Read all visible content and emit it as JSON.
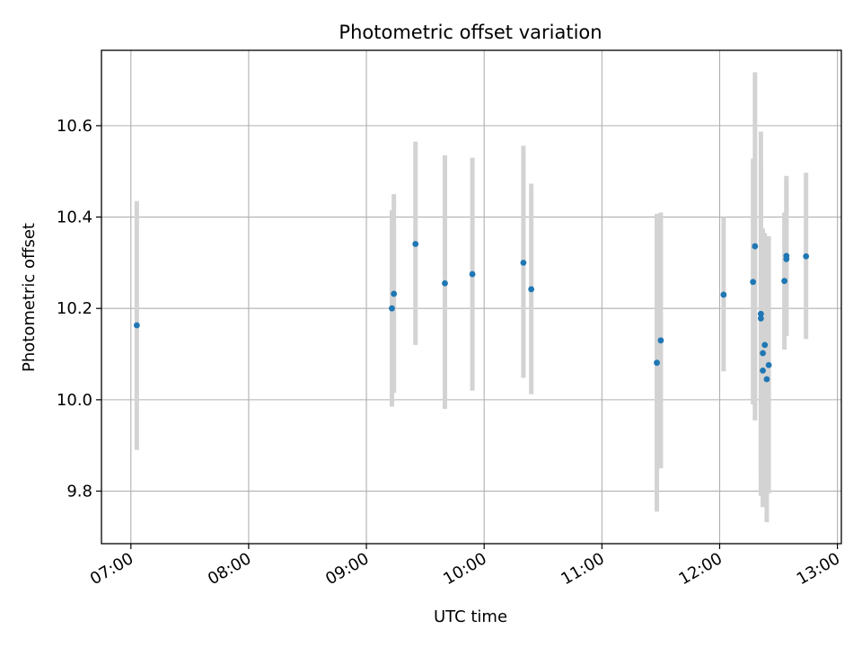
{
  "chart_data": {
    "type": "scatter",
    "title": "Photometric offset variation",
    "xlabel": "UTC time",
    "ylabel": "Photometric offset",
    "x_axis_kind": "time",
    "xlim": [
      "06:45",
      "13:02"
    ],
    "ylim": [
      9.685,
      10.765
    ],
    "x_ticks": [
      "07:00",
      "08:00",
      "09:00",
      "10:00",
      "11:00",
      "12:00",
      "13:00"
    ],
    "y_ticks": [
      9.8,
      10.0,
      10.2,
      10.4,
      10.6
    ],
    "y_tick_labels": [
      "9.8",
      "10.0",
      "10.2",
      "10.4",
      "10.6"
    ],
    "grid": true,
    "marker_color": "#1f77b4",
    "errorbar_color": "#d3d3d3",
    "points": [
      {
        "time": "07:03",
        "y": 10.163,
        "lo": 9.89,
        "hi": 10.435
      },
      {
        "time": "09:13",
        "y": 10.2,
        "lo": 9.985,
        "hi": 10.415
      },
      {
        "time": "09:14",
        "y": 10.232,
        "lo": 10.015,
        "hi": 10.45
      },
      {
        "time": "09:25",
        "y": 10.341,
        "lo": 10.12,
        "hi": 10.565
      },
      {
        "time": "09:40",
        "y": 10.255,
        "lo": 9.98,
        "hi": 10.535
      },
      {
        "time": "09:54",
        "y": 10.275,
        "lo": 10.02,
        "hi": 10.53
      },
      {
        "time": "10:20",
        "y": 10.3,
        "lo": 10.048,
        "hi": 10.556
      },
      {
        "time": "10:24",
        "y": 10.242,
        "lo": 10.012,
        "hi": 10.473
      },
      {
        "time": "11:28",
        "y": 10.081,
        "lo": 9.755,
        "hi": 10.407
      },
      {
        "time": "11:30",
        "y": 10.13,
        "lo": 9.85,
        "hi": 10.41
      },
      {
        "time": "12:02",
        "y": 10.23,
        "lo": 10.062,
        "hi": 10.4
      },
      {
        "time": "12:17",
        "y": 10.258,
        "lo": 9.99,
        "hi": 10.528
      },
      {
        "time": "12:18",
        "y": 10.336,
        "lo": 9.955,
        "hi": 10.717
      },
      {
        "time": "12:21",
        "y": 10.188,
        "lo": 9.79,
        "hi": 10.587
      },
      {
        "time": "12:21",
        "y": 10.178,
        "lo": 9.84,
        "hi": 10.516
      },
      {
        "time": "12:22",
        "y": 10.064,
        "lo": 9.765,
        "hi": 10.364
      },
      {
        "time": "12:22",
        "y": 10.102,
        "lo": 9.83,
        "hi": 10.375
      },
      {
        "time": "12:23",
        "y": 10.12,
        "lo": 9.875,
        "hi": 10.365
      },
      {
        "time": "12:24",
        "y": 10.045,
        "lo": 9.732,
        "hi": 10.358
      },
      {
        "time": "12:25",
        "y": 10.076,
        "lo": 9.795,
        "hi": 10.358
      },
      {
        "time": "12:33",
        "y": 10.26,
        "lo": 10.11,
        "hi": 10.41
      },
      {
        "time": "12:34",
        "y": 10.308,
        "lo": 10.14,
        "hi": 10.48
      },
      {
        "time": "12:34",
        "y": 10.315,
        "lo": 10.14,
        "hi": 10.49
      },
      {
        "time": "12:44",
        "y": 10.314,
        "lo": 10.133,
        "hi": 10.497
      }
    ]
  }
}
